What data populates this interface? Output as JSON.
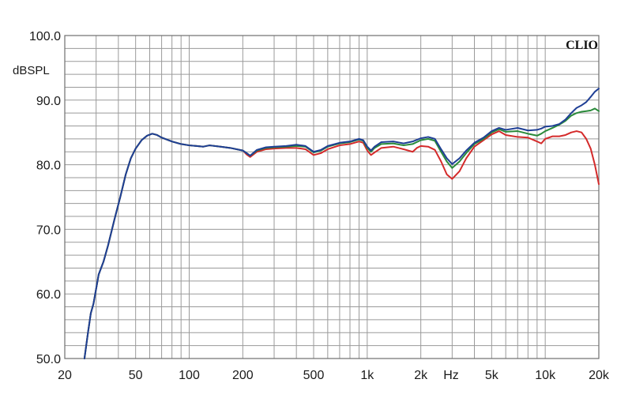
{
  "chart_data": {
    "type": "line",
    "title": "",
    "brand": "CLIO",
    "ylabel": "dBSPL",
    "xlabel": "Hz",
    "xscale": "log",
    "xlim": [
      20,
      20000
    ],
    "ylim": [
      50,
      100
    ],
    "grid": true,
    "x_ticks": [
      {
        "value": 20,
        "label": "20"
      },
      {
        "value": 50,
        "label": "50"
      },
      {
        "value": 100,
        "label": "100"
      },
      {
        "value": 200,
        "label": "200"
      },
      {
        "value": 500,
        "label": "500"
      },
      {
        "value": 1000,
        "label": "1k"
      },
      {
        "value": 2000,
        "label": "2k"
      },
      {
        "value": 5000,
        "label": "5k"
      },
      {
        "value": 10000,
        "label": "10k"
      },
      {
        "value": 20000,
        "label": "20k"
      }
    ],
    "y_ticks": [
      {
        "value": 100,
        "label": "100.0"
      },
      {
        "value": 90,
        "label": "90.0"
      },
      {
        "value": 80,
        "label": "80.0"
      },
      {
        "value": 70,
        "label": "70.0"
      },
      {
        "value": 60,
        "label": "60.0"
      },
      {
        "value": 50,
        "label": "50.0"
      }
    ],
    "series": [
      {
        "color": "#d42a2a",
        "points": [
          [
            25.8,
            50
          ],
          [
            27,
            54
          ],
          [
            28,
            57
          ],
          [
            29,
            58.5
          ],
          [
            31,
            63
          ],
          [
            33,
            65
          ],
          [
            35,
            67.5
          ],
          [
            38,
            71.5
          ],
          [
            41,
            75
          ],
          [
            44,
            78.5
          ],
          [
            47,
            81
          ],
          [
            50,
            82.5
          ],
          [
            54,
            83.8
          ],
          [
            58,
            84.5
          ],
          [
            62,
            84.8
          ],
          [
            66,
            84.6
          ],
          [
            70,
            84.2
          ],
          [
            80,
            83.6
          ],
          [
            90,
            83.2
          ],
          [
            100,
            83
          ],
          [
            110,
            82.9
          ],
          [
            120,
            82.8
          ],
          [
            130,
            83
          ],
          [
            150,
            82.8
          ],
          [
            170,
            82.6
          ],
          [
            200,
            82.2
          ],
          [
            210,
            81.6
          ],
          [
            220,
            81.2
          ],
          [
            240,
            82
          ],
          [
            270,
            82.4
          ],
          [
            300,
            82.5
          ],
          [
            350,
            82.6
          ],
          [
            400,
            82.6
          ],
          [
            450,
            82.4
          ],
          [
            500,
            81.5
          ],
          [
            550,
            81.8
          ],
          [
            600,
            82.4
          ],
          [
            700,
            83
          ],
          [
            800,
            83.2
          ],
          [
            900,
            83.6
          ],
          [
            950,
            83.4
          ],
          [
            1000,
            82.2
          ],
          [
            1050,
            81.5
          ],
          [
            1100,
            81.9
          ],
          [
            1200,
            82.6
          ],
          [
            1400,
            82.8
          ],
          [
            1600,
            82.4
          ],
          [
            1800,
            82
          ],
          [
            1900,
            82.6
          ],
          [
            2000,
            82.9
          ],
          [
            2200,
            82.8
          ],
          [
            2400,
            82.3
          ],
          [
            2600,
            80.5
          ],
          [
            2800,
            78.5
          ],
          [
            3000,
            77.8
          ],
          [
            3300,
            79
          ],
          [
            3600,
            81
          ],
          [
            4000,
            82.8
          ],
          [
            4500,
            83.8
          ],
          [
            5000,
            84.7
          ],
          [
            5500,
            85.2
          ],
          [
            6000,
            84.6
          ],
          [
            7000,
            84.3
          ],
          [
            8000,
            84.2
          ],
          [
            9000,
            83.6
          ],
          [
            9500,
            83.3
          ],
          [
            10000,
            84
          ],
          [
            11000,
            84.4
          ],
          [
            12000,
            84.4
          ],
          [
            13000,
            84.6
          ],
          [
            14000,
            85
          ],
          [
            15000,
            85.2
          ],
          [
            16000,
            85
          ],
          [
            17000,
            84
          ],
          [
            18000,
            82.5
          ],
          [
            19000,
            80
          ],
          [
            20000,
            77
          ]
        ]
      },
      {
        "color": "#2a8a3a",
        "points": [
          [
            25.8,
            50
          ],
          [
            27,
            54
          ],
          [
            28,
            57
          ],
          [
            29,
            58.5
          ],
          [
            31,
            63
          ],
          [
            33,
            65
          ],
          [
            35,
            67.5
          ],
          [
            38,
            71.5
          ],
          [
            41,
            75
          ],
          [
            44,
            78.5
          ],
          [
            47,
            81
          ],
          [
            50,
            82.5
          ],
          [
            54,
            83.8
          ],
          [
            58,
            84.5
          ],
          [
            62,
            84.8
          ],
          [
            66,
            84.6
          ],
          [
            70,
            84.2
          ],
          [
            80,
            83.6
          ],
          [
            90,
            83.2
          ],
          [
            100,
            83
          ],
          [
            110,
            82.9
          ],
          [
            120,
            82.8
          ],
          [
            130,
            83
          ],
          [
            150,
            82.8
          ],
          [
            170,
            82.6
          ],
          [
            200,
            82.2
          ],
          [
            210,
            81.8
          ],
          [
            220,
            81.4
          ],
          [
            240,
            82.2
          ],
          [
            270,
            82.6
          ],
          [
            300,
            82.7
          ],
          [
            350,
            82.8
          ],
          [
            400,
            82.9
          ],
          [
            450,
            82.8
          ],
          [
            500,
            81.9
          ],
          [
            550,
            82.2
          ],
          [
            600,
            82.8
          ],
          [
            700,
            83.3
          ],
          [
            800,
            83.5
          ],
          [
            900,
            83.9
          ],
          [
            950,
            83.7
          ],
          [
            1000,
            82.6
          ],
          [
            1050,
            82
          ],
          [
            1100,
            82.6
          ],
          [
            1200,
            83.2
          ],
          [
            1400,
            83.3
          ],
          [
            1600,
            83
          ],
          [
            1800,
            83.2
          ],
          [
            2000,
            83.8
          ],
          [
            2200,
            84
          ],
          [
            2400,
            83.7
          ],
          [
            2600,
            82
          ],
          [
            2800,
            80.5
          ],
          [
            3000,
            79.5
          ],
          [
            3300,
            80.5
          ],
          [
            3600,
            81.8
          ],
          [
            4000,
            83.2
          ],
          [
            4500,
            84
          ],
          [
            5000,
            85
          ],
          [
            5500,
            85.5
          ],
          [
            6000,
            85.1
          ],
          [
            7000,
            85.2
          ],
          [
            8000,
            84.8
          ],
          [
            9000,
            84.5
          ],
          [
            9500,
            84.8
          ],
          [
            10000,
            85.2
          ],
          [
            11000,
            85.7
          ],
          [
            12000,
            86.2
          ],
          [
            13000,
            86.8
          ],
          [
            14000,
            87.6
          ],
          [
            15000,
            88
          ],
          [
            16000,
            88.2
          ],
          [
            17000,
            88.3
          ],
          [
            18000,
            88.4
          ],
          [
            19000,
            88.7
          ],
          [
            20000,
            88.3
          ]
        ]
      },
      {
        "color": "#1f3f95",
        "points": [
          [
            25.8,
            50
          ],
          [
            27,
            54
          ],
          [
            28,
            57
          ],
          [
            29,
            58.5
          ],
          [
            31,
            63
          ],
          [
            33,
            65
          ],
          [
            35,
            67.5
          ],
          [
            38,
            71.5
          ],
          [
            41,
            75
          ],
          [
            44,
            78.5
          ],
          [
            47,
            81
          ],
          [
            50,
            82.5
          ],
          [
            54,
            83.8
          ],
          [
            58,
            84.5
          ],
          [
            62,
            84.8
          ],
          [
            66,
            84.6
          ],
          [
            70,
            84.2
          ],
          [
            80,
            83.6
          ],
          [
            90,
            83.2
          ],
          [
            100,
            83
          ],
          [
            110,
            82.9
          ],
          [
            120,
            82.8
          ],
          [
            130,
            83
          ],
          [
            150,
            82.8
          ],
          [
            170,
            82.6
          ],
          [
            200,
            82.2
          ],
          [
            210,
            81.8
          ],
          [
            220,
            81.4
          ],
          [
            240,
            82.3
          ],
          [
            270,
            82.7
          ],
          [
            300,
            82.8
          ],
          [
            350,
            82.9
          ],
          [
            400,
            83.1
          ],
          [
            450,
            82.9
          ],
          [
            500,
            82
          ],
          [
            550,
            82.3
          ],
          [
            600,
            82.9
          ],
          [
            700,
            83.4
          ],
          [
            800,
            83.6
          ],
          [
            900,
            84
          ],
          [
            950,
            83.8
          ],
          [
            1000,
            82.8
          ],
          [
            1050,
            82.2
          ],
          [
            1100,
            82.8
          ],
          [
            1200,
            83.5
          ],
          [
            1400,
            83.6
          ],
          [
            1600,
            83.3
          ],
          [
            1800,
            83.6
          ],
          [
            2000,
            84.1
          ],
          [
            2200,
            84.3
          ],
          [
            2400,
            84
          ],
          [
            2600,
            82.4
          ],
          [
            2800,
            81
          ],
          [
            3000,
            80.1
          ],
          [
            3300,
            81
          ],
          [
            3600,
            82.2
          ],
          [
            4000,
            83.4
          ],
          [
            4500,
            84.2
          ],
          [
            5000,
            85.2
          ],
          [
            5500,
            85.7
          ],
          [
            6000,
            85.4
          ],
          [
            7000,
            85.7
          ],
          [
            8000,
            85.3
          ],
          [
            9000,
            85.4
          ],
          [
            9500,
            85.6
          ],
          [
            10000,
            85.9
          ],
          [
            11000,
            86
          ],
          [
            12000,
            86.3
          ],
          [
            13000,
            87
          ],
          [
            14000,
            88
          ],
          [
            15000,
            88.8
          ],
          [
            16000,
            89.2
          ],
          [
            17000,
            89.7
          ],
          [
            18000,
            90.5
          ],
          [
            19000,
            91.3
          ],
          [
            20000,
            91.8
          ]
        ]
      }
    ]
  }
}
